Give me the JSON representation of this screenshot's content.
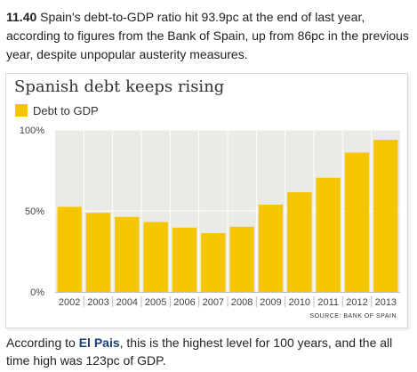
{
  "intro": {
    "time": "11.40",
    "text": "Spain's debt-to-GDP ratio hit 93.9pc at the end of last year, according to figures from the Bank of Spain, up from 86pc in the previous year, despite unpopular austerity measures."
  },
  "colors": {
    "bar": "#f5c600",
    "plot_background": "#ebebe5",
    "gridline": "#ffffff",
    "link": "#1a3f73"
  },
  "chart_data": {
    "type": "bar",
    "title": "Spanish debt keeps rising",
    "xlabel": "",
    "ylabel": "",
    "categories": [
      "2002",
      "2003",
      "2004",
      "2005",
      "2006",
      "2007",
      "2008",
      "2009",
      "2010",
      "2011",
      "2012",
      "2013"
    ],
    "series": [
      {
        "name": "Debt to GDP",
        "values": [
          52.5,
          48.8,
          46.3,
          43.2,
          39.7,
          36.3,
          40.2,
          53.9,
          61.5,
          70.5,
          86.0,
          93.9
        ]
      }
    ],
    "ylim": [
      0,
      100
    ],
    "yticks": [
      {
        "value": 0,
        "label": "0%"
      },
      {
        "value": 50,
        "label": "50%"
      },
      {
        "value": 100,
        "label": "100%"
      }
    ],
    "grid": true,
    "legend_position": "top-left",
    "source": "SOURCE: BANK OF SPAIN"
  },
  "outro": {
    "before": "According to ",
    "link_label": "El Pais",
    "after": ", this is the highest level for 100 years, and the all time high was 123pc of GDP."
  }
}
